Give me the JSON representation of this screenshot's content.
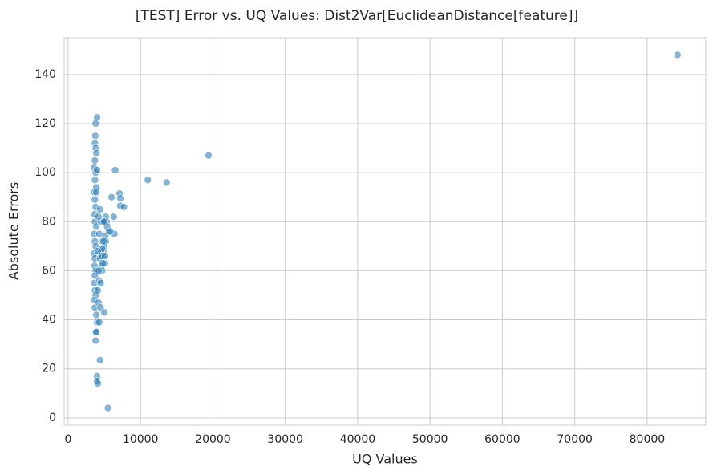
{
  "chart_data": {
    "type": "scatter",
    "title": "[TEST] Error vs. UQ Values: Dist2Var[EuclideanDistance[feature]]",
    "x_label": "UQ Values",
    "y_label": "Absolute Errors",
    "color": "#1f77b4",
    "grid": true,
    "xlim": [
      -550,
      88100
    ],
    "ylim": [
      -3,
      155
    ],
    "xticks": [
      0,
      10000,
      20000,
      30000,
      40000,
      50000,
      60000,
      70000,
      80000
    ],
    "yticks": [
      0,
      20,
      40,
      60,
      80,
      100,
      120,
      140
    ],
    "x": [
      84200,
      19400,
      11000,
      13600,
      6500,
      7100,
      7200,
      6000,
      7200,
      7700,
      6300,
      6400,
      5500,
      4400,
      4000,
      4000,
      4100,
      3800,
      3900,
      3800,
      4000,
      3800,
      3750,
      3700,
      3800,
      3900,
      3700,
      3600,
      3800,
      3700,
      3900,
      3600,
      3700,
      3800,
      3650,
      3700,
      3900,
      3600,
      3700,
      3800,
      3600,
      3700,
      3650,
      3800,
      3700,
      3600,
      3700,
      3800,
      3600,
      3700,
      3900,
      4000,
      4200,
      4300,
      4500,
      4600,
      4700,
      4800,
      5000,
      5100,
      5200,
      5300,
      5400,
      5600,
      5800,
      4500,
      4700,
      4900,
      5000,
      5200,
      4300,
      4400,
      4600,
      4800,
      5100,
      4200,
      4500,
      4700,
      4100,
      4300,
      4400,
      4600,
      4900,
      5000,
      3900,
      4000,
      4200,
      4100,
      4800,
      5100
    ],
    "values": [
      148,
      107,
      97,
      96,
      101,
      91.5,
      89.5,
      90,
      86.5,
      86,
      82,
      75,
      4,
      23.5,
      17,
      15,
      14,
      35,
      35,
      31.5,
      122.5,
      120,
      115,
      112,
      110,
      108,
      105,
      102,
      100,
      97,
      94,
      92,
      89,
      86,
      83,
      80,
      78,
      75,
      72,
      70,
      67,
      65,
      62,
      60,
      58,
      55,
      52,
      50,
      48,
      45,
      42,
      39,
      47,
      39,
      45,
      62,
      60,
      66,
      43,
      63,
      72,
      80,
      78,
      76,
      76,
      80,
      72,
      68,
      70,
      82,
      56,
      65,
      68,
      80,
      74,
      60,
      55,
      69,
      52,
      75,
      85,
      66,
      72,
      80,
      92,
      101,
      82,
      68,
      63,
      66
    ]
  }
}
